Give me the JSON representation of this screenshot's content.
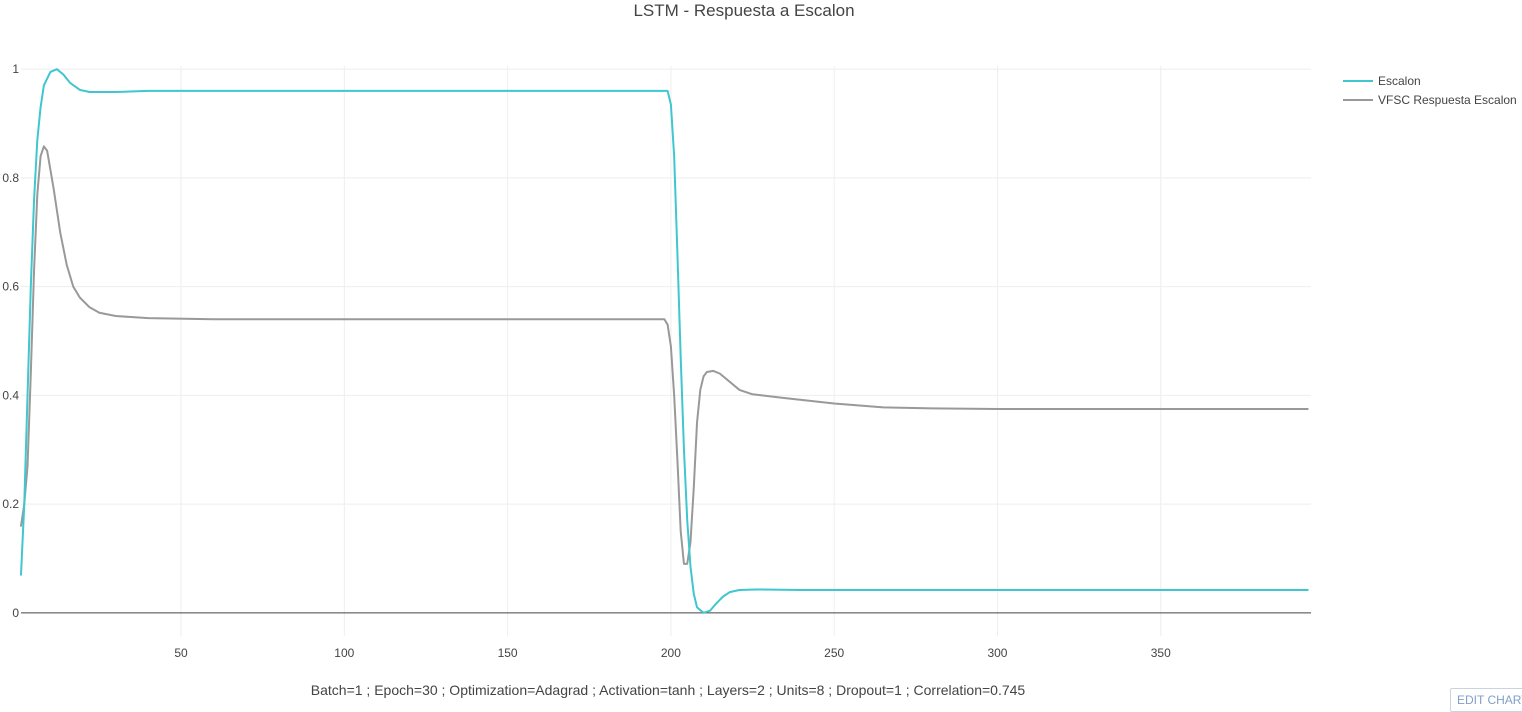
{
  "chart_data": {
    "type": "line",
    "title": "LSTM - Respuesta a Escalon",
    "xlabel": "Batch=1 ; Epoch=30 ; Optimization=Adagrad ; Activation=tanh ; Layers=2 ; Units=8 ; Dropout=1 ; Correlation=0.745",
    "ylabel": "",
    "xlim": [
      1,
      396
    ],
    "ylim": [
      -0.05,
      1.05
    ],
    "x_ticks": [
      50,
      100,
      150,
      200,
      250,
      300,
      350
    ],
    "x_tick_labels": [
      "50",
      "100",
      "150",
      "200",
      "250",
      "300",
      "350"
    ],
    "y_ticks": [
      0,
      0.2,
      0.4,
      0.6,
      0.8,
      1
    ],
    "y_tick_labels": [
      "0",
      "0.2",
      "0.4",
      "0.6",
      "0.8",
      "1"
    ],
    "grid": true,
    "legend_position": "top-right",
    "series": [
      {
        "name": "Escalon",
        "color": "#3fc6cf",
        "points": [
          [
            1,
            0.07
          ],
          [
            2,
            0.2
          ],
          [
            3,
            0.4
          ],
          [
            4,
            0.6
          ],
          [
            5,
            0.76
          ],
          [
            6,
            0.87
          ],
          [
            7,
            0.93
          ],
          [
            8,
            0.97
          ],
          [
            10,
            0.995
          ],
          [
            12,
            1.0
          ],
          [
            14,
            0.99
          ],
          [
            16,
            0.975
          ],
          [
            19,
            0.962
          ],
          [
            22,
            0.958
          ],
          [
            30,
            0.958
          ],
          [
            40,
            0.96
          ],
          [
            100,
            0.96
          ],
          [
            150,
            0.96
          ],
          [
            199,
            0.96
          ],
          [
            200,
            0.935
          ],
          [
            201,
            0.84
          ],
          [
            202,
            0.66
          ],
          [
            203,
            0.47
          ],
          [
            204,
            0.3
          ],
          [
            205,
            0.17
          ],
          [
            206,
            0.085
          ],
          [
            207,
            0.035
          ],
          [
            208,
            0.01
          ],
          [
            210,
            0.0
          ],
          [
            212,
            0.004
          ],
          [
            214,
            0.018
          ],
          [
            216,
            0.03
          ],
          [
            218,
            0.038
          ],
          [
            221,
            0.042
          ],
          [
            226,
            0.043
          ],
          [
            240,
            0.042
          ],
          [
            300,
            0.042
          ],
          [
            395,
            0.042
          ]
        ]
      },
      {
        "name": "VFSC Respuesta Escalon",
        "color": "#999999",
        "points": [
          [
            1,
            0.16
          ],
          [
            2,
            0.2
          ],
          [
            3,
            0.27
          ],
          [
            4,
            0.44
          ],
          [
            5,
            0.63
          ],
          [
            6,
            0.77
          ],
          [
            7,
            0.84
          ],
          [
            8,
            0.858
          ],
          [
            9,
            0.85
          ],
          [
            11,
            0.78
          ],
          [
            13,
            0.7
          ],
          [
            15,
            0.64
          ],
          [
            17,
            0.6
          ],
          [
            19,
            0.58
          ],
          [
            22,
            0.562
          ],
          [
            25,
            0.552
          ],
          [
            30,
            0.546
          ],
          [
            40,
            0.542
          ],
          [
            60,
            0.54
          ],
          [
            100,
            0.54
          ],
          [
            150,
            0.54
          ],
          [
            198,
            0.54
          ],
          [
            199,
            0.53
          ],
          [
            200,
            0.49
          ],
          [
            201,
            0.4
          ],
          [
            202,
            0.28
          ],
          [
            203,
            0.15
          ],
          [
            204,
            0.09
          ],
          [
            205,
            0.09
          ],
          [
            206,
            0.13
          ],
          [
            207,
            0.23
          ],
          [
            208,
            0.35
          ],
          [
            209,
            0.41
          ],
          [
            210,
            0.435
          ],
          [
            211,
            0.443
          ],
          [
            213,
            0.445
          ],
          [
            215,
            0.44
          ],
          [
            218,
            0.425
          ],
          [
            221,
            0.41
          ],
          [
            225,
            0.402
          ],
          [
            235,
            0.395
          ],
          [
            250,
            0.385
          ],
          [
            265,
            0.378
          ],
          [
            280,
            0.376
          ],
          [
            300,
            0.375
          ],
          [
            395,
            0.375
          ]
        ]
      }
    ]
  },
  "controls": {
    "edit_chart_label": "EDIT CHART"
  }
}
